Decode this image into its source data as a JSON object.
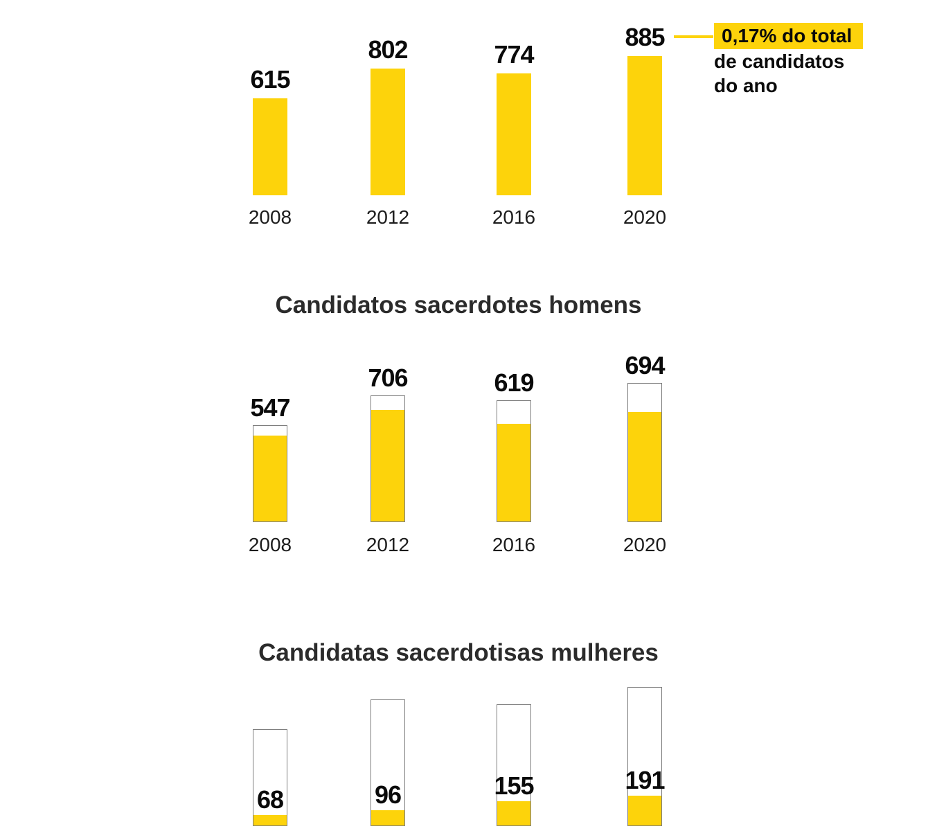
{
  "page": {
    "background": "#ffffff"
  },
  "colors": {
    "yellow": "#fdd30b",
    "bar_border": "#7d7d7d",
    "title_text": "#2b2b2b",
    "label_text": "#0a0a0a",
    "year_text": "#1c1c1c"
  },
  "annotation": {
    "highlight": "0,17% do total",
    "line2": "de candidatos",
    "line3": "do ano",
    "full_text": "0,17% do total de candidatos do ano",
    "points_to_value": 885
  },
  "chart_data": [
    {
      "type": "bar",
      "title": "",
      "categories": [
        "2008",
        "2012",
        "2016",
        "2020"
      ],
      "values": [
        615,
        802,
        774,
        885
      ],
      "style": "solid-yellow",
      "value_labels": [
        "615",
        "802",
        "774",
        "885"
      ],
      "ylim": [
        0,
        885
      ],
      "grid": false,
      "legend": "none",
      "annotation": "0,17% do total de candidatos do ano"
    },
    {
      "type": "bar",
      "title": "Candidatos sacerdotes homens",
      "categories": [
        "2008",
        "2012",
        "2016",
        "2020"
      ],
      "totals": [
        615,
        802,
        774,
        885
      ],
      "values": [
        547,
        706,
        619,
        694
      ],
      "style": "outline-total-with-yellow-fill",
      "value_labels": [
        "547",
        "706",
        "619",
        "694"
      ],
      "ylim": [
        0,
        885
      ],
      "grid": false,
      "legend": "none"
    },
    {
      "type": "bar",
      "title": "Candidatas sacerdotisas mulheres",
      "categories": [
        "2008",
        "2012",
        "2016",
        "2020"
      ],
      "totals": [
        615,
        802,
        774,
        885
      ],
      "values": [
        68,
        96,
        155,
        191
      ],
      "style": "outline-total-with-yellow-fill",
      "value_labels": [
        "68",
        "96",
        "155",
        "191"
      ],
      "value_labels_position": "inside-above-fill",
      "ylim": [
        0,
        885
      ],
      "grid": false,
      "legend": "none"
    }
  ]
}
